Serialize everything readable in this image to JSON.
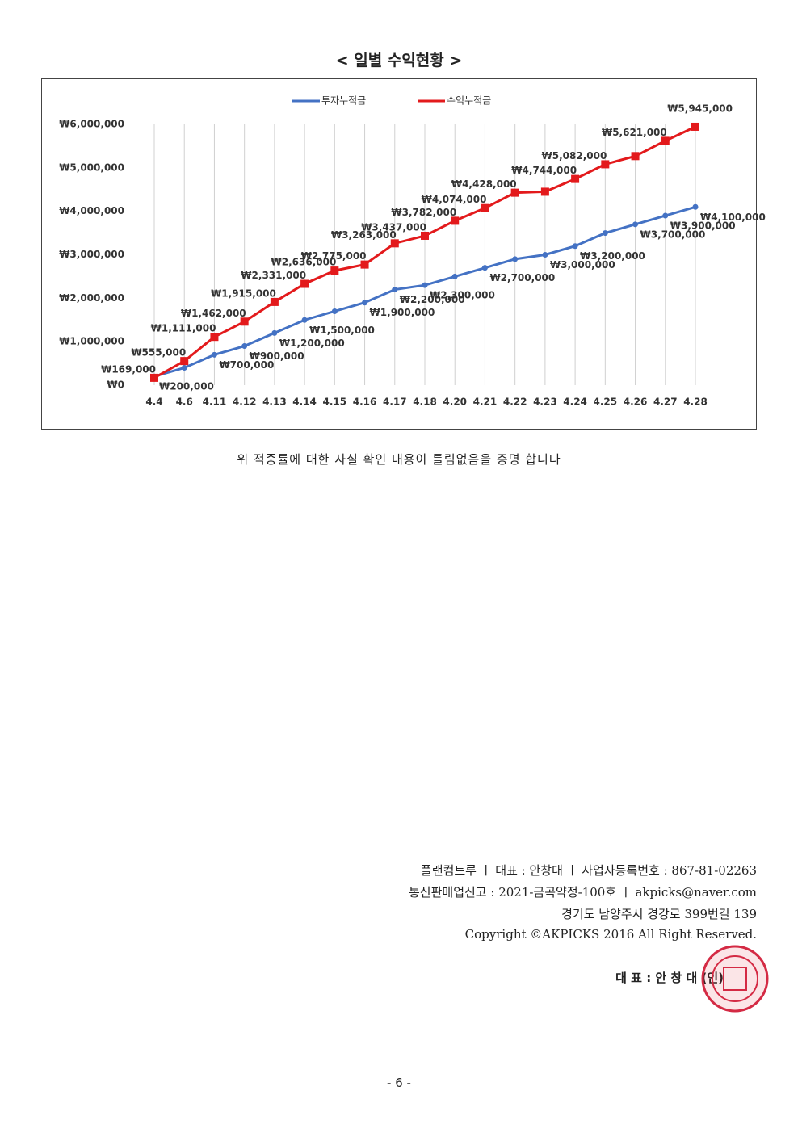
{
  "header": {
    "title": "< 일별 수익현황 >"
  },
  "chart_data": {
    "type": "line",
    "categories": [
      "4.4",
      "4.6",
      "4.11",
      "4.12",
      "4.13",
      "4.14",
      "4.15",
      "4.16",
      "4.17",
      "4.18",
      "4.20",
      "4.21",
      "4.22",
      "4.23",
      "4.24",
      "4.25",
      "4.26",
      "4.27",
      "4.28"
    ],
    "series": [
      {
        "name": "투자누적금",
        "color": "#4472c4",
        "values": [
          200000,
          400000,
          700000,
          900000,
          1200000,
          1500000,
          1700000,
          1900000,
          2200000,
          2300000,
          2500000,
          2700000,
          2900000,
          3000000,
          3200000,
          3500000,
          3700000,
          3900000,
          4100000
        ],
        "value_labels": [
          "₩200,000",
          null,
          "₩700,000",
          "₩900,000",
          "₩1,200,000",
          "₩1,500,000",
          null,
          "₩1,900,000",
          "₩2,200,000",
          "₩2,300,000",
          null,
          "₩2,700,000",
          null,
          "₩3,000,000",
          "₩3,200,000",
          null,
          "₩3,700,000",
          "₩3,900,000",
          "₩4,100,000"
        ]
      },
      {
        "name": "수익누적금",
        "color": "#e31a1c",
        "values": [
          169000,
          555000,
          1111000,
          1462000,
          1915000,
          2331000,
          2636000,
          2775000,
          3263000,
          3437000,
          3782000,
          4074000,
          4428000,
          4450000,
          4744000,
          5082000,
          5270000,
          5621000,
          5945000
        ],
        "value_labels": [
          "₩169,000",
          "₩555,000",
          "₩1,111,000",
          "₩1,462,000",
          "₩1,915,000",
          "₩2,331,000",
          "₩2,636,000",
          "₩2,775,000",
          "₩3,263,000",
          "₩3,437,000",
          "₩3,782,000",
          "₩4,074,000",
          "₩4,428,000",
          null,
          "₩4,744,000",
          "₩5,082,000",
          null,
          "₩5,621,000",
          "₩5,945,000"
        ]
      }
    ],
    "ylim": [
      0,
      6000000
    ],
    "yticks": [
      {
        "value": 0,
        "label": "₩0"
      },
      {
        "value": 1000000,
        "label": "₩1,000,000"
      },
      {
        "value": 2000000,
        "label": "₩2,000,000"
      },
      {
        "value": 3000000,
        "label": "₩3,000,000"
      },
      {
        "value": 4000000,
        "label": "₩4,000,000"
      },
      {
        "value": 5000000,
        "label": "₩5,000,000"
      },
      {
        "value": 6000000,
        "label": "₩6,000,000"
      }
    ],
    "grid": "vertical",
    "legend": "top"
  },
  "statement": "위 적중률에 대한 사실 확인 내용이 틀림없음을 증명 합니다",
  "footer": {
    "lines": [
      "플랜컴트루 ㅣ 대표 : 안창대 ㅣ 사업자등록번호 : 867-81-02263",
      "통신판매업신고 : 2021-금곡약정-100호 ㅣ akpicks@naver.com",
      "경기도 남양주시 경강로 399번길 139",
      "Copyright ©AKPICKS 2016 All Right Reserved."
    ],
    "signature": "대 표 : 안 창 대 (인)",
    "page": "- 6 -"
  }
}
